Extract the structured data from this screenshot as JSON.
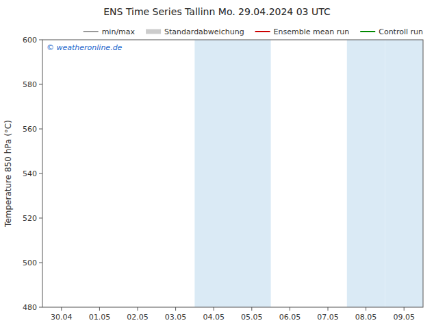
{
  "chart_data": {
    "type": "line",
    "title": "ENS Time Series Tallinn      Mo. 29.04.2024 03 UTC",
    "y_label": "Temperature 850 hPa (°C)",
    "categories": [
      "30.04",
      "01.05",
      "02.05",
      "03.05",
      "04.05",
      "05.05",
      "06.05",
      "07.05",
      "08.05",
      "09.05"
    ],
    "ylim": [
      480,
      600
    ],
    "yticks": [
      480,
      500,
      520,
      540,
      560,
      580,
      600
    ],
    "grid": false,
    "legend": "upper right",
    "shaded_regions": [
      {
        "x0": 4,
        "x1": 5
      },
      {
        "x0": 5,
        "x1": 6
      },
      {
        "x0": 8,
        "x1": 9
      },
      {
        "x0": 9,
        "x1": 10
      }
    ],
    "shade_color": "#daeaf5",
    "watermark": "© weatheronline.de",
    "watermark_color": "#2266cc",
    "series": [
      {
        "name": "min/max",
        "color": "#999999",
        "type": "line"
      },
      {
        "name": "Standardabweichung",
        "color": "#cccccc",
        "type": "area"
      },
      {
        "name": "Ensemble mean run",
        "color": "#cc0000",
        "type": "line"
      },
      {
        "name": "Controll run",
        "color": "#008800",
        "type": "line"
      }
    ]
  }
}
